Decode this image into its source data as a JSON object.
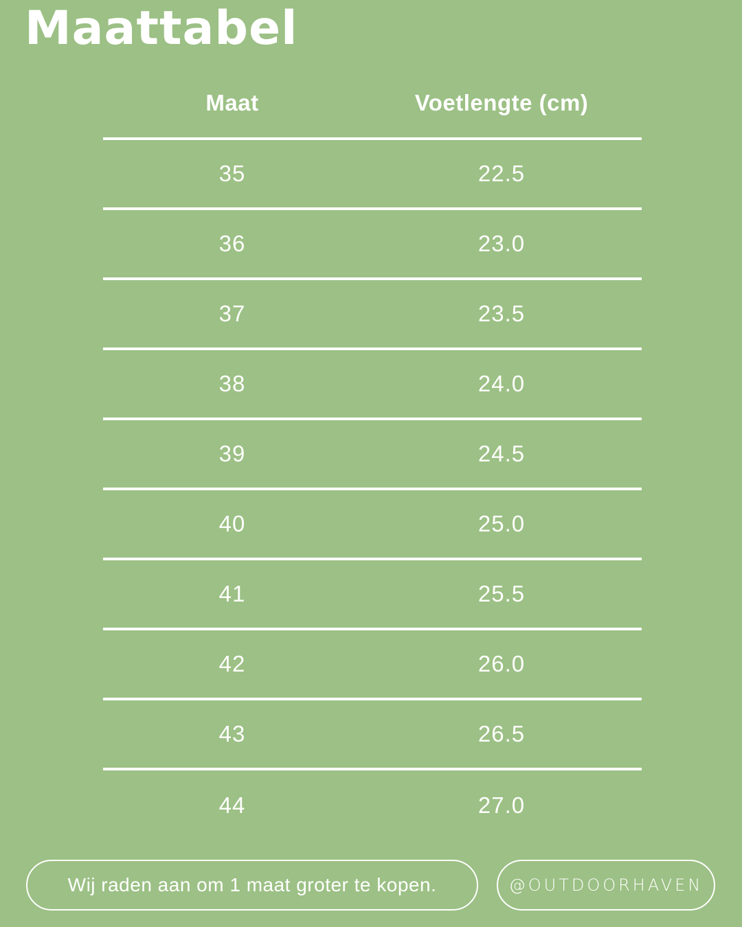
{
  "page": {
    "background_color": "#9CC085",
    "text_color": "#FFFFFF"
  },
  "title": "Maattabel",
  "table": {
    "headers": [
      "Maat",
      "Voetlengte (cm)"
    ],
    "rows": [
      [
        "35",
        "22.5"
      ],
      [
        "36",
        "23.0"
      ],
      [
        "37",
        "23.5"
      ],
      [
        "38",
        "24.0"
      ],
      [
        "39",
        "24.5"
      ],
      [
        "40",
        "25.0"
      ],
      [
        "41",
        "25.5"
      ],
      [
        "42",
        "26.0"
      ],
      [
        "43",
        "26.5"
      ],
      [
        "44",
        "27.0"
      ]
    ]
  },
  "footer": {
    "advice": "Wij raden aan om 1 maat groter te kopen.",
    "handle": "@OUTDOORHAVEN"
  },
  "chart_data": {
    "type": "table",
    "title": "Maattabel",
    "columns": [
      "Maat",
      "Voetlengte (cm)"
    ],
    "categories": [
      "35",
      "36",
      "37",
      "38",
      "39",
      "40",
      "41",
      "42",
      "43",
      "44"
    ],
    "values": [
      22.5,
      23.0,
      23.5,
      24.0,
      24.5,
      25.0,
      25.5,
      26.0,
      26.5,
      27.0
    ],
    "annotations": [
      "Wij raden aan om 1 maat groter te kopen.",
      "@OUTDOORHAVEN"
    ]
  }
}
